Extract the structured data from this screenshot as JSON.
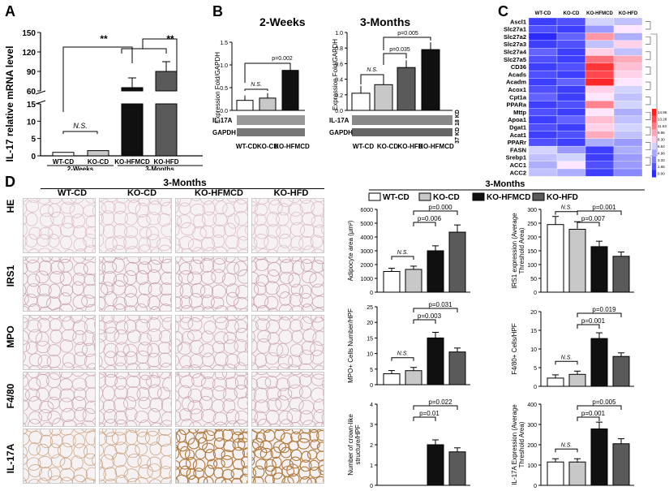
{
  "panels": {
    "A": "A",
    "B": "B",
    "C": "C",
    "D": "D"
  },
  "colors": {
    "wt": "#ffffff",
    "ko": "#c8c8c8",
    "hfmcd": "#101010",
    "hfd": "#5a5a5a",
    "heat_low": "#2b2bff",
    "heat_high": "#ff2020"
  },
  "panelA": {
    "ylabel": "IL-17 relative mRNA level",
    "yticks_top": [
      "0",
      "60",
      "90",
      "120",
      "150"
    ],
    "yticks_bottom": [
      "0",
      "5",
      "10",
      "15"
    ],
    "ns": "N.S.",
    "sig1": "**",
    "sig2": "**",
    "group_labels": [
      "WT-CD",
      "KO-CD",
      "KO-HFMCD",
      "KO-HFD"
    ],
    "period_labels": [
      "2-Weeks",
      "3-Months"
    ]
  },
  "panelB_left": {
    "title": "2-Weeks",
    "ylabel": "Expression Fold/GAPDH",
    "yticks": [
      "0.0",
      "0.5",
      "1.0",
      "1.5"
    ],
    "ns": "N.S.",
    "pval": "p=0.002",
    "blot1": "IL-17A",
    "blot2": "GAPDH",
    "xlabels": [
      "WT-CD",
      "KO-CD",
      "KO-HFMCD"
    ]
  },
  "panelB_right": {
    "title": "3-Months",
    "ylabel": "Expression Fold/GAPDH",
    "yticks": [
      "0.0",
      "0.2",
      "0.4",
      "0.6",
      "0.8",
      "1.0"
    ],
    "ns": "N.S.",
    "pval1": "p=0.005",
    "pval2": "p=0.035",
    "blot1": "IL-17A",
    "blot2": "GAPDH",
    "side": "37 KD 18 KD",
    "xlabels": [
      "WT-CD",
      "KO-CD",
      "KO-HFD",
      "KO-HFMCD"
    ]
  },
  "panelC": {
    "cols": [
      "WT-CD",
      "KO-CD",
      "KO-HFMCD",
      "KO-HFD"
    ],
    "genes": [
      "Ascl1",
      "Slc27a1",
      "Slc27a2",
      "Slc27a3",
      "Slc27a4",
      "Slc27a5",
      "CD36",
      "Acads",
      "Acadm",
      "Acox1",
      "Cpt1a",
      "PPARa",
      "Mttp",
      "Apoa1",
      "Dgat1",
      "Acat1",
      "PPARr",
      "FASN",
      "Srebp1",
      "ACC1",
      "ACC2"
    ],
    "values": [
      [
        0.05,
        0.1,
        0.45,
        0.4
      ],
      [
        0.1,
        0.05,
        0.3,
        0.5
      ],
      [
        0.0,
        0.15,
        0.7,
        0.35
      ],
      [
        0.05,
        0.1,
        0.4,
        0.55
      ],
      [
        0.15,
        0.05,
        0.55,
        0.4
      ],
      [
        0.1,
        0.05,
        0.8,
        0.65
      ],
      [
        0.05,
        0.1,
        0.95,
        0.6
      ],
      [
        0.1,
        0.05,
        0.9,
        0.55
      ],
      [
        0.05,
        0.15,
        0.98,
        0.5
      ],
      [
        0.1,
        0.05,
        0.55,
        0.45
      ],
      [
        0.15,
        0.05,
        0.5,
        0.4
      ],
      [
        0.05,
        0.1,
        0.75,
        0.45
      ],
      [
        0.1,
        0.05,
        0.5,
        0.35
      ],
      [
        0.05,
        0.15,
        0.6,
        0.4
      ],
      [
        0.1,
        0.05,
        0.55,
        0.45
      ],
      [
        0.05,
        0.1,
        0.65,
        0.4
      ],
      [
        0.1,
        0.05,
        0.35,
        0.3
      ],
      [
        0.45,
        0.3,
        0.05,
        0.35
      ],
      [
        0.4,
        0.45,
        0.05,
        0.3
      ],
      [
        0.35,
        0.5,
        0.1,
        0.3
      ],
      [
        0.4,
        0.35,
        0.05,
        0.25
      ]
    ],
    "scale": [
      "14.95",
      "13.28",
      "11.63",
      "9.96",
      "8.30",
      "6.64",
      "4.98",
      "3.32",
      "1.66",
      "0.00"
    ]
  },
  "panelD": {
    "title": "3-Months",
    "cols": [
      "WT-CD",
      "KO-CD",
      "KO-HFMCD",
      "KO-HFD"
    ],
    "rows": [
      "HE",
      "IRS1",
      "MPO",
      "F4/80",
      "IL-17A"
    ],
    "legend_title": "3-Months",
    "legend": [
      "WT-CD",
      "KO-CD",
      "KO-HFMCD",
      "KO-HFD"
    ]
  },
  "chart_data": [
    {
      "type": "bar",
      "title": "",
      "ylabel": "IL-17 relative mRNA level",
      "categories": [
        "WT-CD 2W",
        "KO-CD 2W",
        "KO-HFMCD 3M",
        "KO-HFD 3M"
      ],
      "values": [
        1,
        1.5,
        65,
        90
      ],
      "ylim": [
        0,
        150
      ]
    },
    {
      "type": "bar",
      "title": "2-Weeks",
      "ylabel": "Expression Fold/GAPDH",
      "categories": [
        "WT-CD",
        "KO-CD",
        "KO-HFMCD"
      ],
      "values": [
        0.22,
        0.27,
        0.88
      ],
      "ylim": [
        0,
        1.5
      ]
    },
    {
      "type": "bar",
      "title": "3-Months",
      "ylabel": "Expression Fold/GAPDH",
      "categories": [
        "WT-CD",
        "KO-CD",
        "KO-HFD",
        "KO-HFMCD"
      ],
      "values": [
        0.22,
        0.33,
        0.55,
        0.78
      ],
      "ylim": [
        0,
        1.0
      ]
    },
    {
      "type": "bar",
      "ylabel": "Adipocyte area (µm²)",
      "categories": [
        "WT-CD",
        "KO-CD",
        "KO-HFMCD",
        "KO-HFD"
      ],
      "values": [
        1500,
        1650,
        3000,
        4350
      ],
      "ylim": [
        0,
        6000
      ],
      "yticks": [
        "0",
        "1000",
        "2000",
        "3000",
        "4000",
        "5000",
        "6000"
      ],
      "annotations": [
        "N.S.",
        "p=0.006",
        "p=0.000"
      ]
    },
    {
      "type": "bar",
      "ylabel": "IRS1 expression (Average Threshold Area)",
      "categories": [
        "WT-CD",
        "KO-CD",
        "KO-HFMCD",
        "KO-HFD"
      ],
      "values": [
        245,
        228,
        165,
        130
      ],
      "ylim": [
        0,
        300
      ],
      "yticks": [
        "0",
        "50",
        "100",
        "150",
        "200",
        "250",
        "300"
      ],
      "annotations": [
        "N.S.",
        "p=0.007",
        "p=0.001"
      ]
    },
    {
      "type": "bar",
      "ylabel": "MPO+ Cells Number/HPF",
      "categories": [
        "WT-CD",
        "KO-CD",
        "KO-HFMCD",
        "KO-HFD"
      ],
      "values": [
        3.5,
        4.5,
        15,
        10.5
      ],
      "ylim": [
        0,
        25
      ],
      "yticks": [
        "0",
        "5",
        "10",
        "15",
        "20",
        "25"
      ],
      "annotations": [
        "N.S.",
        "p=0.003",
        "p=0.031"
      ]
    },
    {
      "type": "bar",
      "ylabel": "F4/80+ Cells/HPF",
      "categories": [
        "WT-CD",
        "KO-CD",
        "KO-HFMCD",
        "KO-HFD"
      ],
      "values": [
        2.2,
        3.2,
        12.8,
        8
      ],
      "ylim": [
        0,
        20
      ],
      "yticks": [
        "0",
        "5",
        "10",
        "15",
        "20"
      ],
      "annotations": [
        "N.S.",
        "p=0.001",
        "p=0.019"
      ]
    },
    {
      "type": "bar",
      "ylabel": "Number of crown-like structure/HPF",
      "categories": [
        "WT-CD",
        "KO-CD",
        "KO-HFMCD",
        "KO-HFD"
      ],
      "values": [
        0,
        0,
        2,
        1.65
      ],
      "ylim": [
        0,
        4
      ],
      "yticks": [
        "0",
        "1",
        "2",
        "3",
        "4"
      ],
      "annotations": [
        "p=0.01",
        "p=0.022"
      ]
    },
    {
      "type": "bar",
      "ylabel": "IL-17A Expression (Average Threshold Area)",
      "categories": [
        "WT-CD",
        "KO-CD",
        "KO-HFMCD",
        "KO-HFD"
      ],
      "values": [
        115,
        115,
        278,
        205
      ],
      "ylim": [
        0,
        400
      ],
      "yticks": [
        "0",
        "100",
        "200",
        "300",
        "400"
      ],
      "annotations": [
        "N.S.",
        "p=0.001",
        "p=0.005"
      ]
    }
  ]
}
